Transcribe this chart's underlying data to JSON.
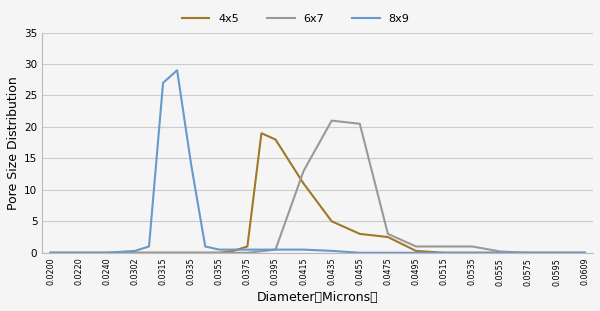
{
  "title": "",
  "xlabel": "Diameter（Microns）",
  "ylabel": "Pore Size Distribution",
  "ylim": [
    0,
    35
  ],
  "yticks": [
    0,
    5,
    10,
    15,
    20,
    25,
    30,
    35
  ],
  "xtick_labels": [
    "0.0200",
    "0.0220",
    "0.0240",
    "0.0302",
    "0.0315",
    "0.0335",
    "0.0355",
    "0.0375",
    "0.0395",
    "0.0415",
    "0.0435",
    "0.0455",
    "0.0475",
    "0.0495",
    "0.0515",
    "0.0535",
    "0.0555",
    "0.0575",
    "0.0595",
    "0.0609"
  ],
  "series": [
    {
      "label": "4x5",
      "color": "#A07828",
      "x_indices": [
        0,
        1,
        2,
        3,
        4,
        5,
        6,
        6.5,
        7,
        7.5,
        8,
        9,
        10,
        11,
        12,
        13,
        14,
        15,
        16,
        17,
        18,
        19
      ],
      "y": [
        0,
        0,
        0,
        0,
        0,
        0,
        0,
        0.3,
        1.0,
        19.0,
        18.0,
        11.0,
        5.0,
        3.0,
        2.5,
        0.3,
        0,
        0,
        0,
        0,
        0,
        0
      ]
    },
    {
      "label": "6x7",
      "color": "#999999",
      "x_indices": [
        0,
        1,
        2,
        3,
        4,
        5,
        6,
        7,
        8,
        9,
        10,
        11,
        12,
        13,
        14,
        15,
        16,
        17,
        18,
        19
      ],
      "y": [
        0,
        0,
        0,
        0,
        0,
        0,
        0,
        0,
        0.5,
        13.0,
        21.0,
        20.5,
        3.0,
        1.0,
        1.0,
        1.0,
        0.2,
        0,
        0,
        0
      ]
    },
    {
      "label": "8x9",
      "color": "#6699cc",
      "x_indices": [
        0,
        1,
        2,
        3,
        3.5,
        4,
        4.5,
        5,
        5.5,
        6,
        7,
        8,
        9,
        10,
        11,
        12,
        13,
        14,
        15,
        16,
        17,
        18,
        19
      ],
      "y": [
        0,
        0,
        0,
        0.3,
        1.0,
        27.0,
        29.0,
        14.0,
        1.0,
        0.5,
        0.5,
        0.5,
        0.5,
        0.3,
        0,
        0,
        0,
        0,
        0,
        0,
        0,
        0,
        0
      ]
    }
  ],
  "legend_loc": "upper center",
  "background_color": "#f5f5f5",
  "grid_color": "#cccccc"
}
